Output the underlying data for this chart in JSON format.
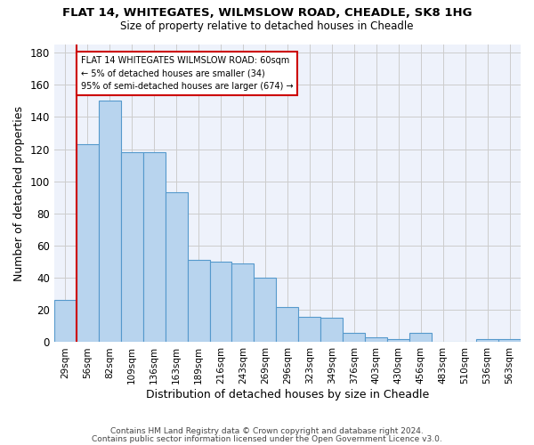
{
  "title1": "FLAT 14, WHITEGATES, WILMSLOW ROAD, CHEADLE, SK8 1HG",
  "title2": "Size of property relative to detached houses in Cheadle",
  "xlabel": "Distribution of detached houses by size in Cheadle",
  "ylabel": "Number of detached properties",
  "categories": [
    "29sqm",
    "56sqm",
    "82sqm",
    "109sqm",
    "136sqm",
    "163sqm",
    "189sqm",
    "216sqm",
    "243sqm",
    "269sqm",
    "296sqm",
    "323sqm",
    "349sqm",
    "376sqm",
    "403sqm",
    "430sqm",
    "456sqm",
    "483sqm",
    "510sqm",
    "536sqm",
    "563sqm"
  ],
  "values": [
    26,
    123,
    150,
    118,
    118,
    93,
    51,
    50,
    49,
    40,
    22,
    16,
    15,
    6,
    3,
    2,
    6,
    0,
    0,
    2,
    2
  ],
  "bar_color": "#b8d4ee",
  "bar_edge_color": "#5599cc",
  "annotation_text_line1": "FLAT 14 WHITEGATES WILMSLOW ROAD: 60sqm",
  "annotation_text_line2": "← 5% of detached houses are smaller (34)",
  "annotation_text_line3": "95% of semi-detached houses are larger (674) →",
  "vline_color": "#cc0000",
  "ylim": [
    0,
    185
  ],
  "yticks": [
    0,
    20,
    40,
    60,
    80,
    100,
    120,
    140,
    160,
    180
  ],
  "background_color": "#eef2fb",
  "grid_color": "#cccccc",
  "footer1": "Contains HM Land Registry data © Crown copyright and database right 2024.",
  "footer2": "Contains public sector information licensed under the Open Government Licence v3.0."
}
